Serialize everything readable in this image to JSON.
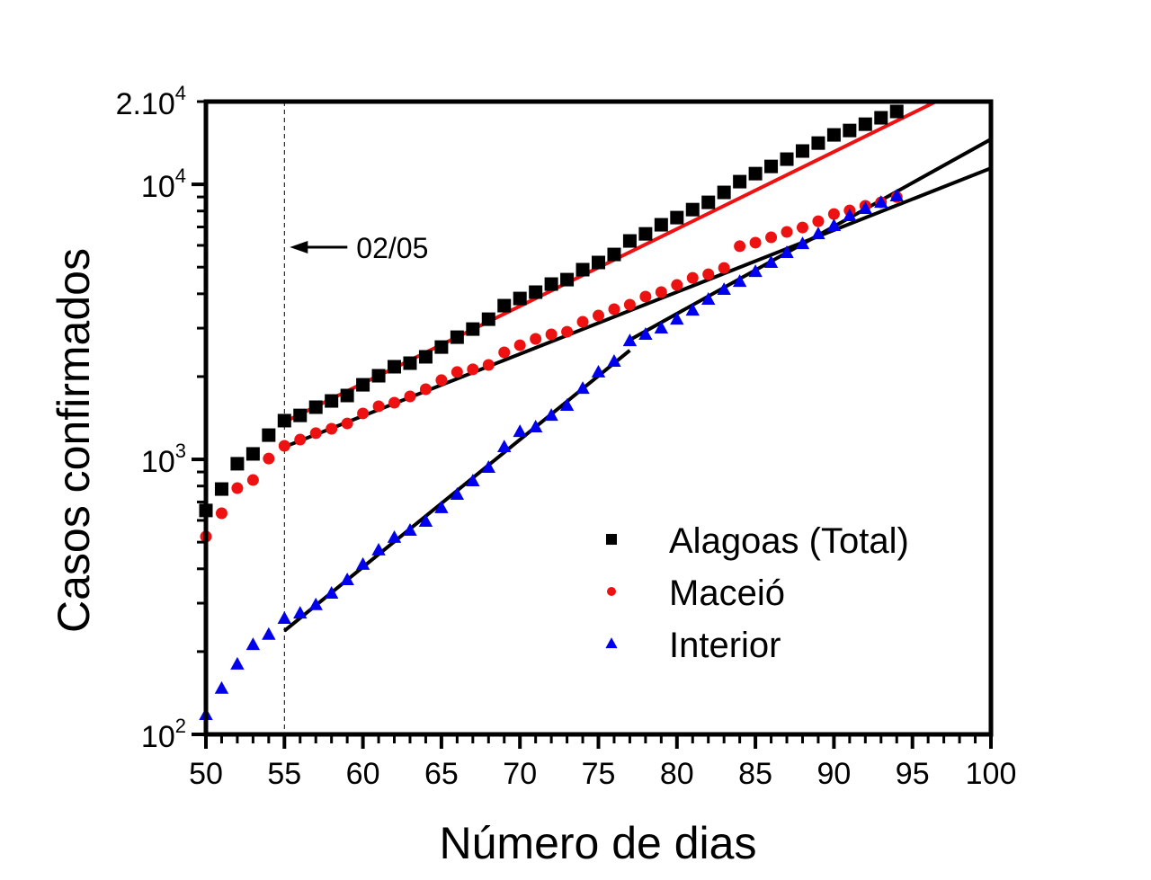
{
  "chart_data": {
    "type": "scatter",
    "title": "",
    "xlabel": "Número de dias",
    "ylabel": "Casos confirmados",
    "xlim": [
      50,
      100
    ],
    "ylim": [
      100,
      20000
    ],
    "yscale": "log",
    "x_ticks": [
      50,
      55,
      60,
      65,
      70,
      75,
      80,
      85,
      90,
      95,
      100
    ],
    "x_tick_labels": [
      "50",
      "55",
      "60",
      "65",
      "70",
      "75",
      "80",
      "85",
      "90",
      "95",
      "100"
    ],
    "y_ticks": [
      {
        "value": 100,
        "base": "10",
        "exp": "2"
      },
      {
        "value": 1000,
        "base": "10",
        "exp": "3"
      },
      {
        "value": 10000,
        "base": "10",
        "exp": "4"
      },
      {
        "value": 20000,
        "base": "2.10",
        "exp": "4"
      }
    ],
    "grid": false,
    "legend_position": "bottom-right",
    "annotation": {
      "text": "02/05",
      "x": 55
    },
    "x": [
      50,
      51,
      52,
      53,
      54,
      55,
      56,
      57,
      58,
      59,
      60,
      61,
      62,
      63,
      64,
      65,
      66,
      67,
      68,
      69,
      70,
      71,
      72,
      73,
      74,
      75,
      76,
      77,
      78,
      79,
      80,
      81,
      82,
      83,
      84,
      85,
      86,
      87,
      88,
      89,
      90,
      91,
      92,
      93,
      94
    ],
    "series": [
      {
        "name": "Alagoas (Total)",
        "marker": "square",
        "color": "#000000",
        "values": [
          652,
          780,
          964,
          1047,
          1225,
          1383,
          1445,
          1548,
          1631,
          1707,
          1867,
          2014,
          2172,
          2238,
          2360,
          2561,
          2782,
          2977,
          3234,
          3622,
          3846,
          4056,
          4339,
          4504,
          4896,
          5199,
          5561,
          6227,
          6607,
          7129,
          7570,
          8095,
          8603,
          9349,
          10230,
          10940,
          11620,
          12350,
          13220,
          14130,
          15130,
          15700,
          16550,
          17460,
          18410
        ]
      },
      {
        "name": "Maceió",
        "marker": "circle",
        "color": "#ee1111",
        "values": [
          524,
          637,
          786,
          841,
          1007,
          1120,
          1180,
          1245,
          1292,
          1351,
          1469,
          1560,
          1607,
          1694,
          1799,
          1941,
          2077,
          2125,
          2205,
          2450,
          2600,
          2742,
          2847,
          2911,
          3163,
          3334,
          3516,
          3651,
          3908,
          4056,
          4306,
          4571,
          4710,
          4966,
          5957,
          6138,
          6417,
          6716,
          6969,
          7345,
          7798,
          8039,
          8352,
          8603,
          8994
        ]
      },
      {
        "name": "Interior",
        "marker": "triangle",
        "color": "#0000ee",
        "values": [
          118,
          147,
          180,
          212,
          231,
          264,
          276,
          296,
          326,
          365,
          415,
          468,
          520,
          552,
          595,
          667,
          746,
          835,
          935,
          1111,
          1262,
          1312,
          1445,
          1571,
          1811,
          2077,
          2272,
          2699,
          2847,
          3001,
          3234,
          3484,
          3819,
          4147,
          4436,
          4819,
          5199,
          5649,
          6084,
          6607,
          7075,
          7691,
          8166,
          8603,
          9078
        ]
      }
    ],
    "fits": [
      {
        "name": "fit-alagoas",
        "color": "#ee1111",
        "x": [
          55,
          96.5
        ],
        "y": [
          1368,
          20000
        ]
      },
      {
        "name": "fit-maceio",
        "color": "#000000",
        "x": [
          55,
          100
        ],
        "y": [
          1110,
          11450
        ]
      },
      {
        "name": "fit-interior-1",
        "color": "#000000",
        "x": [
          55,
          77
        ],
        "y": [
          238,
          2490
        ]
      },
      {
        "name": "fit-interior-2",
        "color": "#000000",
        "x": [
          77,
          100
        ],
        "y": [
          2720,
          14590
        ]
      }
    ]
  }
}
